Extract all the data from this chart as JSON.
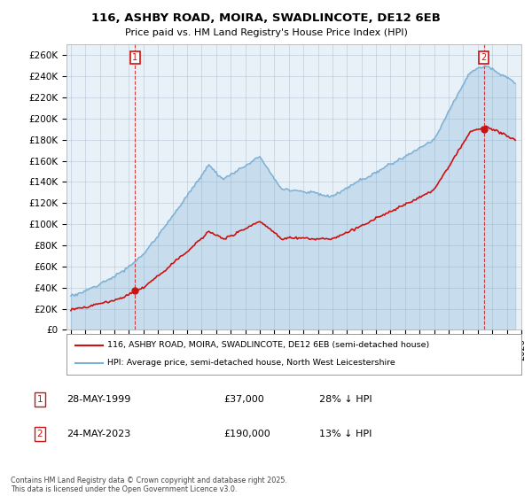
{
  "title": "116, ASHBY ROAD, MOIRA, SWADLINCOTE, DE12 6EB",
  "subtitle": "Price paid vs. HM Land Registry's House Price Index (HPI)",
  "legend_line1": "116, ASHBY ROAD, MOIRA, SWADLINCOTE, DE12 6EB (semi-detached house)",
  "legend_line2": "HPI: Average price, semi-detached house, North West Leicestershire",
  "transaction1_label": "1",
  "transaction1_date": "28-MAY-1999",
  "transaction1_price": "£37,000",
  "transaction1_hpi": "28% ↓ HPI",
  "transaction2_label": "2",
  "transaction2_date": "24-MAY-2023",
  "transaction2_price": "£190,000",
  "transaction2_hpi": "13% ↓ HPI",
  "copyright": "Contains HM Land Registry data © Crown copyright and database right 2025.\nThis data is licensed under the Open Government Licence v3.0.",
  "hpi_color": "#7bafd4",
  "hpi_fill": "#ddeeff",
  "price_color": "#cc1111",
  "marker_color": "#cc1111",
  "background_color": "#ffffff",
  "plot_bg_color": "#e8f0f8",
  "ylim": [
    0,
    270000
  ],
  "yticks": [
    0,
    20000,
    40000,
    60000,
    80000,
    100000,
    120000,
    140000,
    160000,
    180000,
    200000,
    220000,
    240000,
    260000
  ],
  "start_year": 1995,
  "end_year": 2026,
  "transaction1_year": 1999.42,
  "transaction2_year": 2023.42,
  "transaction1_price_val": 37000,
  "transaction2_price_val": 190000
}
